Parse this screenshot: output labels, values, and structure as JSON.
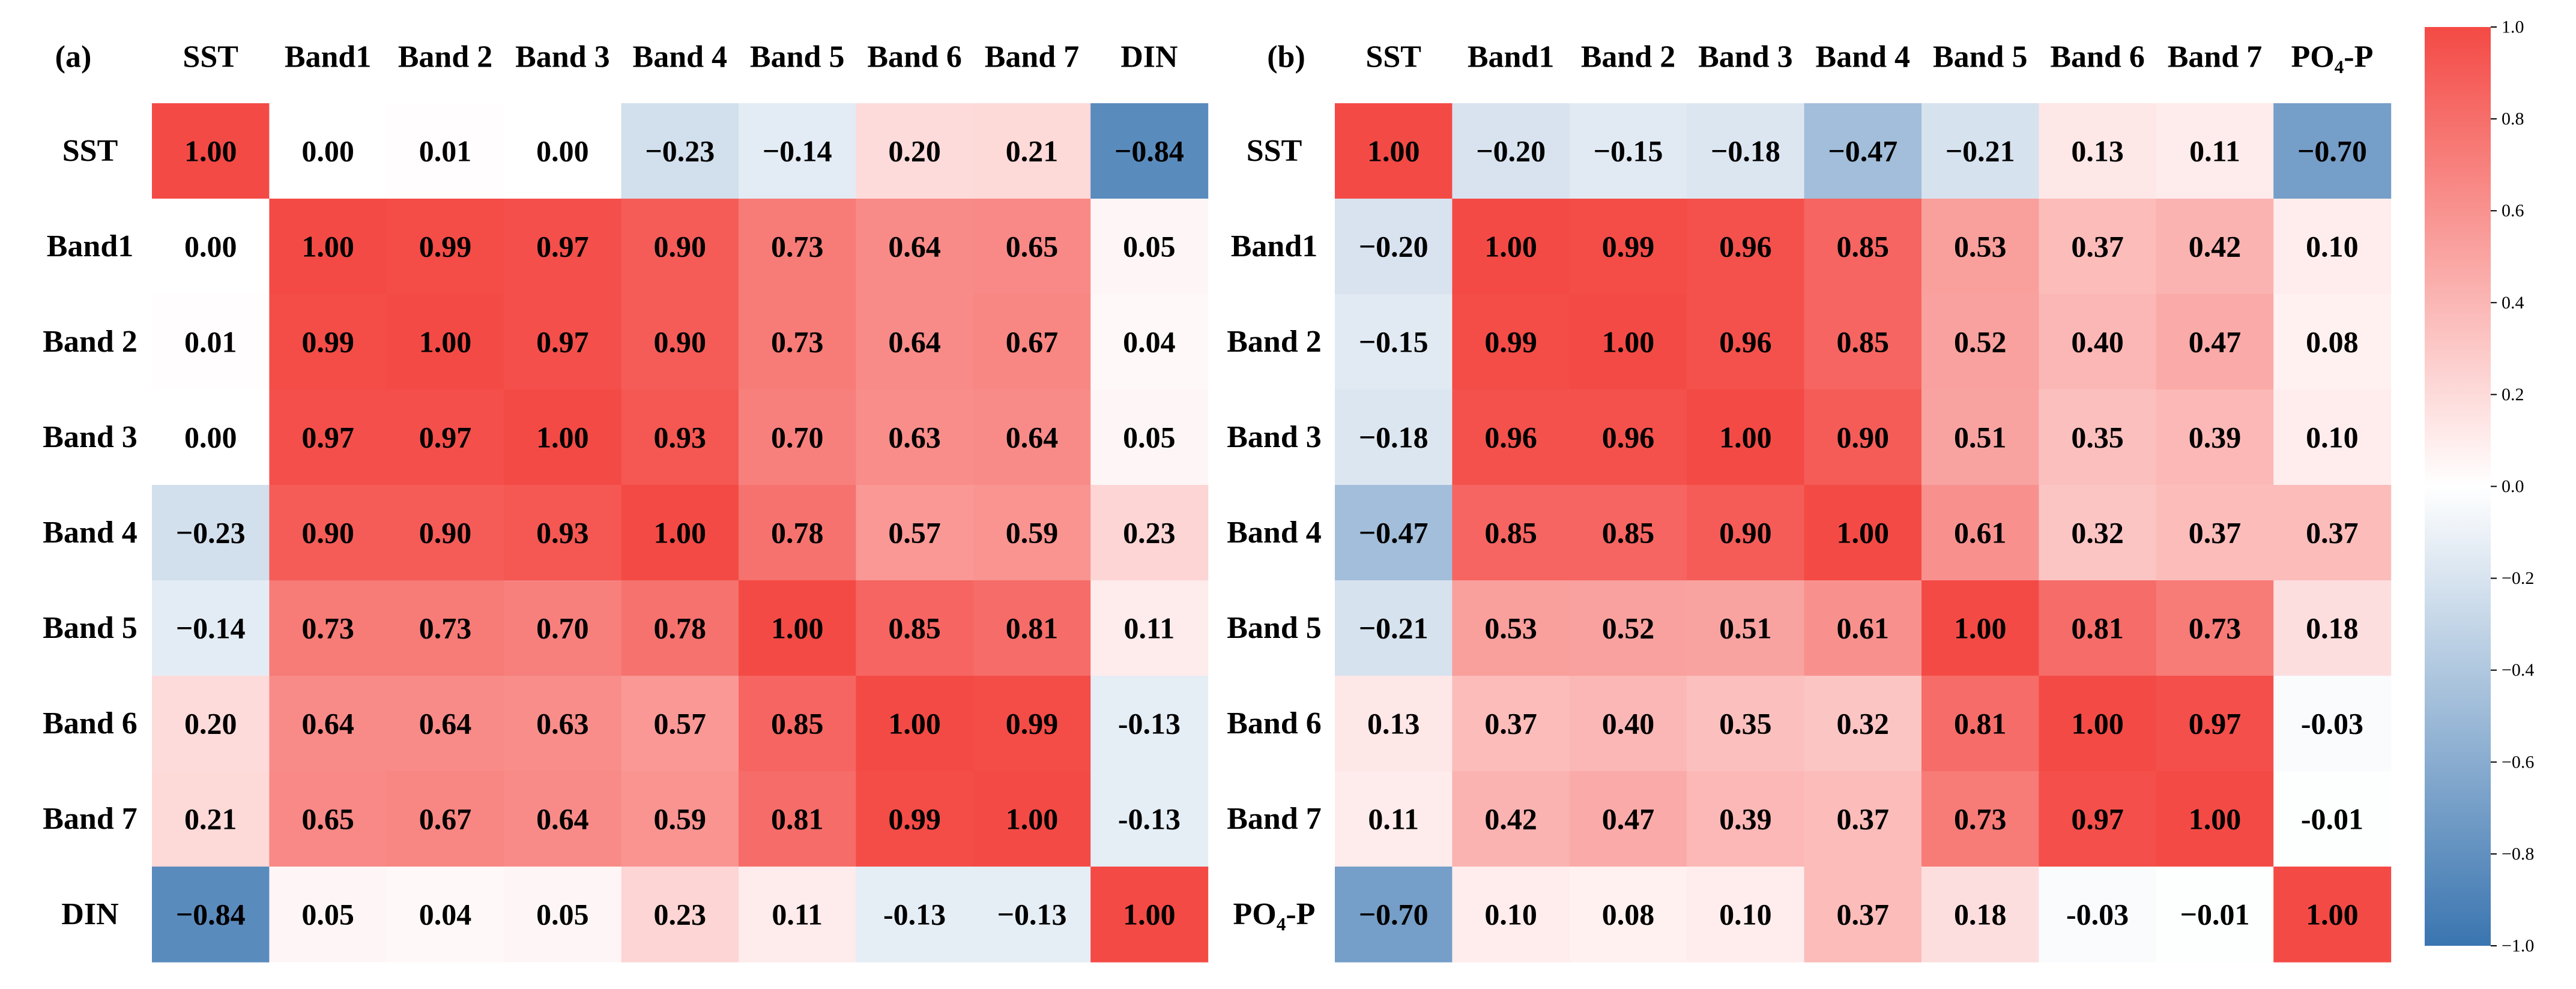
{
  "chart_data": [
    {
      "type": "heatmap",
      "panel_label": "(a)",
      "column_labels": [
        "SST",
        "Band1",
        "Band 2",
        "Band 3",
        "Band 4",
        "Band 5",
        "Band 6",
        "Band 7",
        "DIN"
      ],
      "row_labels": [
        "SST",
        "Band1",
        "Band 2",
        "Band 3",
        "Band 4",
        "Band 5",
        "Band 6",
        "Band 7",
        "DIN"
      ],
      "values": [
        [
          1.0,
          0.0,
          0.01,
          0.0,
          -0.23,
          -0.14,
          0.2,
          0.21,
          -0.84
        ],
        [
          0.0,
          1.0,
          0.99,
          0.97,
          0.9,
          0.73,
          0.64,
          0.65,
          0.05
        ],
        [
          0.01,
          0.99,
          1.0,
          0.97,
          0.9,
          0.73,
          0.64,
          0.67,
          0.04
        ],
        [
          0.0,
          0.97,
          0.97,
          1.0,
          0.93,
          0.7,
          0.63,
          0.64,
          0.05
        ],
        [
          -0.23,
          0.9,
          0.9,
          0.93,
          1.0,
          0.78,
          0.57,
          0.59,
          0.23
        ],
        [
          -0.14,
          0.73,
          0.73,
          0.7,
          0.78,
          1.0,
          0.85,
          0.81,
          0.11
        ],
        [
          0.2,
          0.64,
          0.64,
          0.63,
          0.57,
          0.85,
          1.0,
          0.99,
          -0.13
        ],
        [
          0.21,
          0.65,
          0.67,
          0.64,
          0.59,
          0.81,
          0.99,
          1.0,
          -0.13
        ],
        [
          -0.84,
          0.05,
          0.04,
          0.05,
          0.23,
          0.11,
          -0.13,
          -0.13,
          1.0
        ]
      ],
      "cell_labels": [
        [
          "1.00",
          "0.00",
          "0.01",
          "0.00",
          "−0.23",
          "−0.14",
          "0.20",
          "0.21",
          "−0.84"
        ],
        [
          "0.00",
          "1.00",
          "0.99",
          "0.97",
          "0.90",
          "0.73",
          "0.64",
          "0.65",
          "0.05"
        ],
        [
          "0.01",
          "0.99",
          "1.00",
          "0.97",
          "0.90",
          "0.73",
          "0.64",
          "0.67",
          "0.04"
        ],
        [
          "0.00",
          "0.97",
          "0.97",
          "1.00",
          "0.93",
          "0.70",
          "0.63",
          "0.64",
          "0.05"
        ],
        [
          "−0.23",
          "0.90",
          "0.90",
          "0.93",
          "1.00",
          "0.78",
          "0.57",
          "0.59",
          "0.23"
        ],
        [
          "−0.14",
          "0.73",
          "0.73",
          "0.70",
          "0.78",
          "1.00",
          "0.85",
          "0.81",
          "0.11"
        ],
        [
          "0.20",
          "0.64",
          "0.64",
          "0.63",
          "0.57",
          "0.85",
          "1.00",
          "0.99",
          "-0.13"
        ],
        [
          "0.21",
          "0.65",
          "0.67",
          "0.64",
          "0.59",
          "0.81",
          "0.99",
          "1.00",
          "-0.13"
        ],
        [
          "−0.84",
          "0.05",
          "0.04",
          "0.05",
          "0.23",
          "0.11",
          "-0.13",
          "−0.13",
          "1.00"
        ]
      ]
    },
    {
      "type": "heatmap",
      "panel_label": "(b)",
      "column_labels": [
        "SST",
        "Band1",
        "Band 2",
        "Band 3",
        "Band 4",
        "Band 5",
        "Band 6",
        "Band 7",
        "PO₄-P"
      ],
      "row_labels": [
        "SST",
        "Band1",
        "Band 2",
        "Band 3",
        "Band 4",
        "Band 5",
        "Band 6",
        "Band 7",
        "PO₄-P"
      ],
      "values": [
        [
          1.0,
          -0.2,
          -0.15,
          -0.18,
          -0.47,
          -0.21,
          0.13,
          0.11,
          -0.7
        ],
        [
          -0.2,
          1.0,
          0.99,
          0.96,
          0.85,
          0.53,
          0.37,
          0.42,
          0.1
        ],
        [
          -0.15,
          0.99,
          1.0,
          0.96,
          0.85,
          0.52,
          0.4,
          0.47,
          0.08
        ],
        [
          -0.18,
          0.96,
          0.96,
          1.0,
          0.9,
          0.51,
          0.35,
          0.39,
          0.1
        ],
        [
          -0.47,
          0.85,
          0.85,
          0.9,
          1.0,
          0.61,
          0.32,
          0.37,
          0.37
        ],
        [
          -0.21,
          0.53,
          0.52,
          0.51,
          0.61,
          1.0,
          0.81,
          0.73,
          0.18
        ],
        [
          0.13,
          0.37,
          0.4,
          0.35,
          0.32,
          0.81,
          1.0,
          0.97,
          -0.03
        ],
        [
          0.11,
          0.42,
          0.47,
          0.39,
          0.37,
          0.73,
          0.97,
          1.0,
          -0.01
        ],
        [
          -0.7,
          0.1,
          0.08,
          0.1,
          0.37,
          0.18,
          -0.03,
          -0.01,
          1.0
        ]
      ],
      "cell_labels": [
        [
          "1.00",
          "−0.20",
          "−0.15",
          "−0.18",
          "−0.47",
          "−0.21",
          "0.13",
          "0.11",
          "−0.70"
        ],
        [
          "−0.20",
          "1.00",
          "0.99",
          "0.96",
          "0.85",
          "0.53",
          "0.37",
          "0.42",
          "0.10"
        ],
        [
          "−0.15",
          "0.99",
          "1.00",
          "0.96",
          "0.85",
          "0.52",
          "0.40",
          "0.47",
          "0.08"
        ],
        [
          "−0.18",
          "0.96",
          "0.96",
          "1.00",
          "0.90",
          "0.51",
          "0.35",
          "0.39",
          "0.10"
        ],
        [
          "−0.47",
          "0.85",
          "0.85",
          "0.90",
          "1.00",
          "0.61",
          "0.32",
          "0.37",
          "0.37"
        ],
        [
          "−0.21",
          "0.53",
          "0.52",
          "0.51",
          "0.61",
          "1.00",
          "0.81",
          "0.73",
          "0.18"
        ],
        [
          "0.13",
          "0.37",
          "0.40",
          "0.35",
          "0.32",
          "0.81",
          "1.00",
          "0.97",
          "-0.03"
        ],
        [
          "0.11",
          "0.42",
          "0.47",
          "0.39",
          "0.37",
          "0.73",
          "0.97",
          "1.00",
          "-0.01"
        ],
        [
          "−0.70",
          "0.10",
          "0.08",
          "0.10",
          "0.37",
          "0.18",
          "-0.03",
          "−0.01",
          "1.00"
        ]
      ]
    }
  ],
  "colorbar": {
    "range": [
      -1.0,
      1.0
    ],
    "ticks": [
      1.0,
      0.8,
      0.6,
      0.4,
      0.2,
      0.0,
      -0.2,
      -0.4,
      -0.6,
      -0.8,
      -1.0
    ],
    "tick_labels": [
      "1.0",
      "0.8",
      "0.6",
      "0.4",
      "0.2",
      "0.0",
      "−0.2",
      "−0.4",
      "−0.6",
      "−0.8",
      "−1.0"
    ],
    "color_negative": "#3a75b0",
    "color_zero": "#ffffff",
    "color_positive": "#f44a45"
  }
}
